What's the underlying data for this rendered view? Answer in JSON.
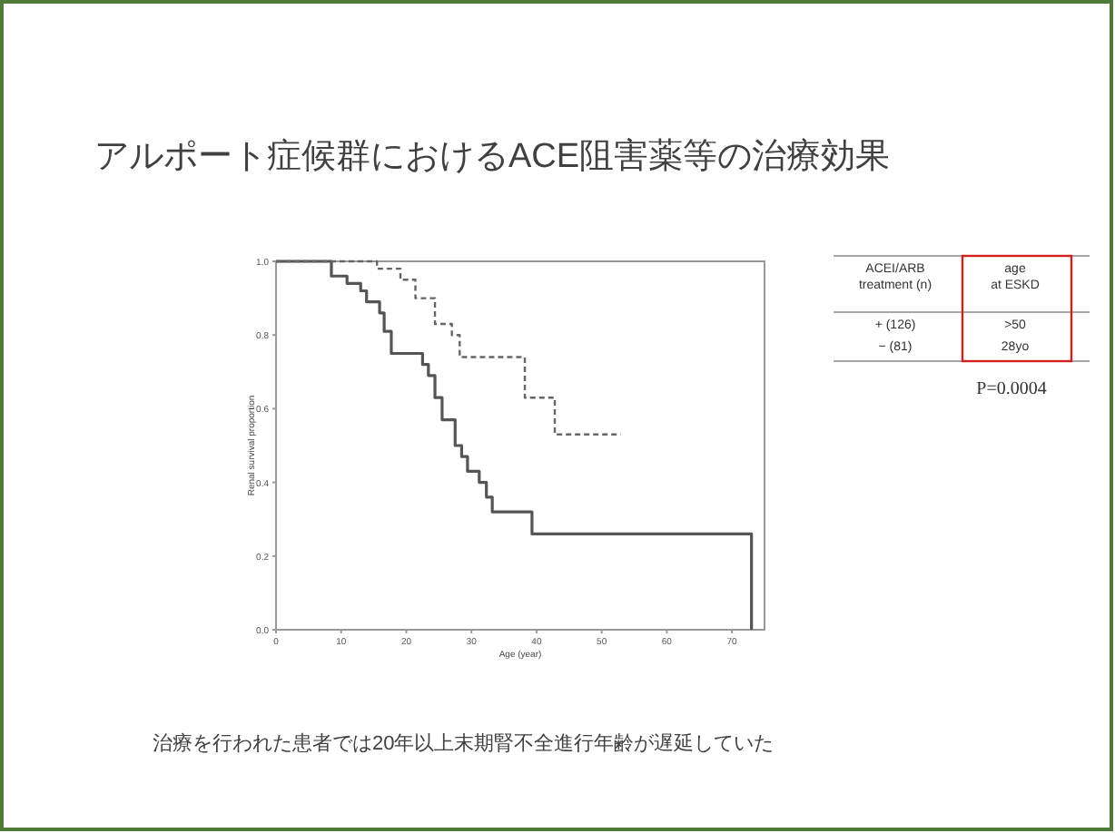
{
  "chart_data": {
    "type": "step",
    "title": "アルポート症候群におけるACE阻害薬等の治療効果",
    "xlabel": "Age (year)",
    "ylabel": "Renal survival proportion",
    "xlim": [
      0,
      75
    ],
    "xticks": [
      0,
      10,
      20,
      30,
      40,
      50,
      60,
      70
    ],
    "ylim": [
      0,
      1
    ],
    "yticks": [
      {
        "value": 0,
        "label": "0.0"
      },
      {
        "value": 0.2,
        "label": "0.2"
      },
      {
        "value": 0.4,
        "label": "0.4"
      },
      {
        "value": 0.6,
        "label": "0.6"
      },
      {
        "value": 0.8,
        "label": "0.8"
      },
      {
        "value": 1,
        "label": "1.0"
      }
    ],
    "grid": false,
    "series": [
      {
        "color": "#555555",
        "line_style": "solid",
        "x": [
          0,
          8.5,
          10.9,
          13,
          13.9,
          15.9,
          16.6,
          17.7,
          22.5,
          23.4,
          24.4,
          25.5,
          27.5,
          28.5,
          29.4,
          31.2,
          32.3,
          33.2,
          39.3,
          73
        ],
        "values": [
          1,
          0.96,
          0.94,
          0.92,
          0.89,
          0.86,
          0.81,
          0.75,
          0.72,
          0.69,
          0.63,
          0.57,
          0.5,
          0.47,
          0.43,
          0.4,
          0.36,
          0.32,
          0.26,
          0
        ]
      },
      {
        "color": "#666666",
        "line_style": "dashed",
        "x": [
          0,
          15.5,
          19.1,
          21.4,
          24.4,
          27,
          28.2,
          38.2,
          42.8,
          52.9
        ],
        "values": [
          1,
          0.98,
          0.95,
          0.9,
          0.83,
          0.8,
          0.74,
          0.63,
          0.53,
          0.53
        ]
      }
    ],
    "annotations": [
      "ACEI/ARB treatment (n)",
      "age at ESKD",
      "+ (126)",
      ">50",
      "− (81)",
      "28yo",
      "P=0.0004",
      "治療を行われた患者では20年以上末期腎不全進行年齢が遅延していた"
    ]
  }
}
